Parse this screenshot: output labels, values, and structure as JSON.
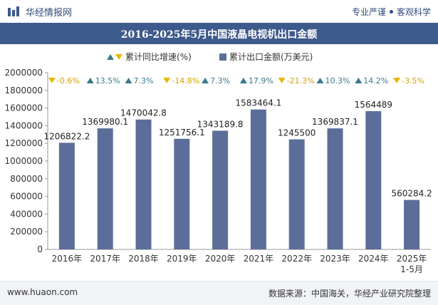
{
  "header": {
    "brand": "华经情报网",
    "right_item_1": "专业严谨",
    "right_item_2": "客观科学"
  },
  "footer": {
    "url": "www.huaon.com",
    "source": "数据来源：中国海关，华经产业研究院整理"
  },
  "colors": {
    "bar": "#5b6e99",
    "up": "#3a7a8c",
    "down": "#e6b800",
    "header_bg": "#3d5a8c"
  },
  "chart_data": {
    "type": "bar",
    "title": "2016-2025年5月中国液晶电视机出口金额",
    "categories": [
      "2016年",
      "2017年",
      "2018年",
      "2019年",
      "2020年",
      "2021年",
      "2022年",
      "2023年",
      "2024年",
      "2025年\n1-5月"
    ],
    "series": [
      {
        "name": "累计出口金额(万美元)",
        "values": [
          1206822.2,
          1369980.1,
          1470042.8,
          1251756.1,
          1343189.8,
          1583464.1,
          1245500,
          1369837.1,
          1564489,
          560284.2
        ]
      }
    ],
    "value_labels": [
      "1206822.2",
      "1369980.1",
      "1470042.8",
      "1251756.1",
      "1343189.8",
      "1583464.1",
      "1245500",
      "1369837.1",
      "1564489",
      "560284.2"
    ],
    "growth": {
      "name": "累计同比增速(%)",
      "values": [
        -0.6,
        13.5,
        7.3,
        -14.8,
        7.3,
        17.9,
        -21.3,
        10.3,
        14.2,
        -3.5
      ],
      "labels": [
        "-0.6%",
        "13.5%",
        "7.3%",
        "-14.8%",
        "7.3%",
        "17.9%",
        "-21.3%",
        "10.3%",
        "14.2%",
        "-3.5%"
      ]
    },
    "ylim": [
      0,
      2000000
    ],
    "yticks": [
      "0",
      "200000",
      "400000",
      "600000",
      "800000",
      "1000000",
      "1200000",
      "1400000",
      "1600000",
      "1800000",
      "2000000"
    ],
    "legend_position": "top-center",
    "grid": false
  }
}
